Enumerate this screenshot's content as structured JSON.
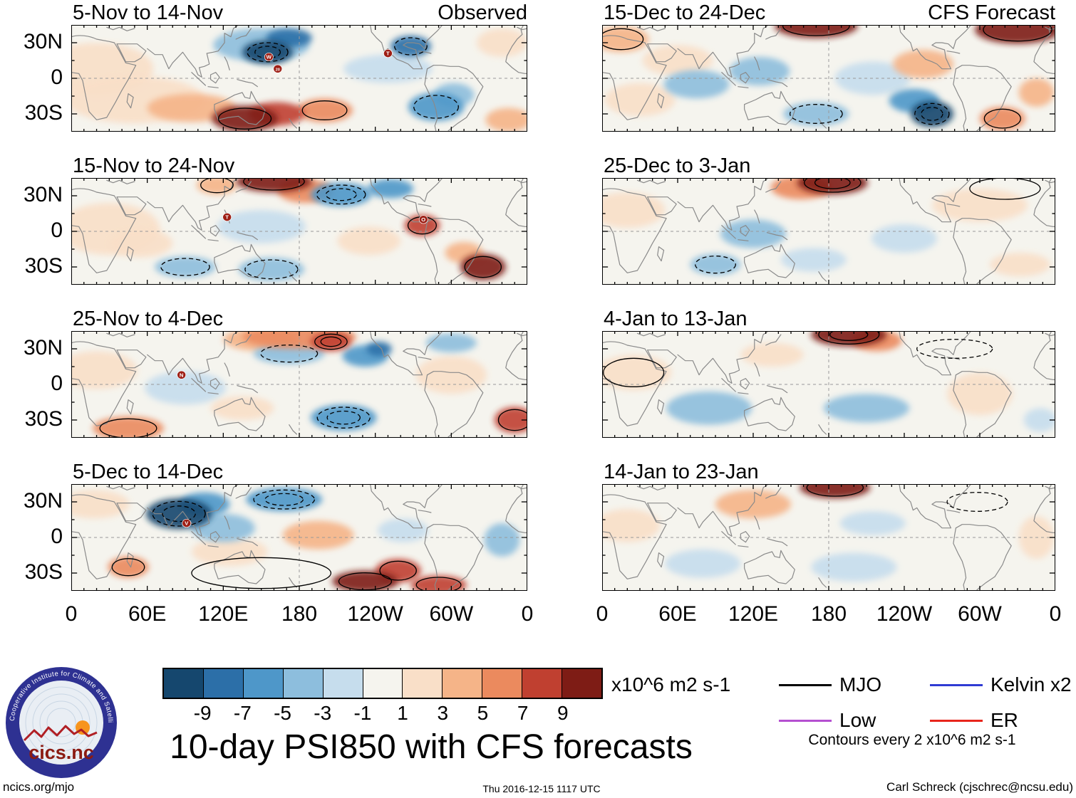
{
  "chart_data": {
    "type": "heatmap",
    "title": "10-day PSI850 with CFS forecasts",
    "units": "x10^6 m2 s-1",
    "contour_note": "Contours every 2 x10^6 m2 s-1",
    "lon_range": [
      0,
      360
    ],
    "lat_range": [
      -45,
      45
    ],
    "grid": {
      "equator_dashed": true,
      "dateline_dashed": true
    },
    "axes": {
      "x_ticks": [
        {
          "lon": 0,
          "label": "0"
        },
        {
          "lon": 60,
          "label": "60E"
        },
        {
          "lon": 120,
          "label": "120E"
        },
        {
          "lon": 180,
          "label": "180"
        },
        {
          "lon": 240,
          "label": "120W"
        },
        {
          "lon": 300,
          "label": "60W"
        },
        {
          "lon": 360,
          "label": "0"
        }
      ],
      "y_ticks": [
        {
          "lat": 30,
          "label": "30N"
        },
        {
          "lat": 0,
          "label": "0"
        },
        {
          "lat": -30,
          "label": "30S"
        }
      ]
    },
    "colorbar": {
      "tick_labels": [
        "-9",
        "-7",
        "-5",
        "-3",
        "-1",
        "1",
        "3",
        "5",
        "7",
        "9"
      ],
      "colors": [
        "#15476e",
        "#2c6fa8",
        "#4e97c9",
        "#8dbedd",
        "#c6dded",
        "#f5f4ee",
        "#f9dfc8",
        "#f5b488",
        "#eb8a5e",
        "#c04030",
        "#7e1c15"
      ]
    },
    "legend": [
      {
        "label": "MJO",
        "color": "#000000"
      },
      {
        "label": "Low",
        "color": "#b44fd0"
      },
      {
        "label": "Kelvin x2",
        "color": "#2f3bd3"
      },
      {
        "label": "ER",
        "color": "#e8251c"
      }
    ],
    "blob_format": "lon,lat,rx_deg,ry_deg,anomaly_level(-5..5),contour_rings(neg=dashed)",
    "panels": [
      {
        "row": 0,
        "col": 0,
        "title": "5-Nov to 14-Nov",
        "corner_label": "Observed",
        "blobs": [
          [
            20,
            8,
            45,
            22,
            1,
            0
          ],
          [
            50,
            -18,
            55,
            20,
            1,
            0
          ],
          [
            95,
            -25,
            35,
            12,
            2,
            0
          ],
          [
            150,
            28,
            38,
            14,
            -2,
            0
          ],
          [
            155,
            22,
            20,
            10,
            -5,
            -2
          ],
          [
            172,
            34,
            18,
            8,
            -4,
            0
          ],
          [
            137,
            -34,
            26,
            11,
            5,
            1
          ],
          [
            162,
            -30,
            22,
            10,
            4,
            0
          ],
          [
            200,
            -27,
            22,
            10,
            3,
            1
          ],
          [
            250,
            8,
            35,
            12,
            -1,
            0
          ],
          [
            268,
            27,
            16,
            9,
            -4,
            -1
          ],
          [
            288,
            -24,
            22,
            12,
            -3,
            -1
          ],
          [
            302,
            -14,
            16,
            10,
            -2,
            0
          ],
          [
            340,
            30,
            20,
            12,
            1,
            0
          ],
          [
            345,
            -35,
            18,
            10,
            2,
            0
          ]
        ],
        "storms": [
          [
            156,
            18,
            "W"
          ],
          [
            163,
            8,
            "20"
          ],
          [
            250,
            21,
            "T"
          ]
        ]
      },
      {
        "row": 1,
        "col": 0,
        "title": "15-Nov to 24-Nov",
        "blobs": [
          [
            30,
            2,
            40,
            22,
            1,
            0
          ],
          [
            55,
            -10,
            25,
            12,
            1,
            0
          ],
          [
            115,
            39,
            16,
            8,
            2,
            1
          ],
          [
            160,
            42,
            30,
            9,
            5,
            1
          ],
          [
            185,
            34,
            22,
            10,
            3,
            0
          ],
          [
            213,
            31,
            24,
            10,
            -3,
            -2
          ],
          [
            252,
            36,
            18,
            8,
            -3,
            0
          ],
          [
            150,
            4,
            35,
            14,
            -1,
            0
          ],
          [
            90,
            -30,
            24,
            9,
            -2,
            -1
          ],
          [
            158,
            -32,
            26,
            10,
            -2,
            -1
          ],
          [
            277,
            5,
            14,
            9,
            4,
            1
          ],
          [
            325,
            -30,
            18,
            11,
            5,
            1
          ],
          [
            310,
            -18,
            15,
            9,
            2,
            0
          ],
          [
            235,
            -8,
            25,
            12,
            1,
            0
          ]
        ],
        "storms": [
          [
            123,
            12,
            "T"
          ],
          [
            278,
            10,
            "O"
          ]
        ]
      },
      {
        "row": 2,
        "col": 0,
        "title": "25-Nov to 4-Dec",
        "blobs": [
          [
            20,
            12,
            32,
            16,
            1,
            0
          ],
          [
            90,
            -3,
            32,
            14,
            -1,
            0
          ],
          [
            135,
            -20,
            25,
            10,
            1,
            0
          ],
          [
            150,
            38,
            30,
            10,
            2,
            0
          ],
          [
            180,
            40,
            45,
            10,
            3,
            0
          ],
          [
            205,
            36,
            16,
            8,
            4,
            2
          ],
          [
            172,
            26,
            28,
            9,
            -2,
            -1
          ],
          [
            232,
            24,
            18,
            9,
            -3,
            0
          ],
          [
            243,
            30,
            10,
            6,
            -4,
            0
          ],
          [
            215,
            -28,
            26,
            11,
            -3,
            -2
          ],
          [
            45,
            -37,
            28,
            10,
            3,
            1
          ],
          [
            350,
            -30,
            16,
            11,
            4,
            1
          ],
          [
            300,
            8,
            28,
            16,
            1,
            0
          ],
          [
            300,
            35,
            20,
            8,
            -2,
            0
          ]
        ],
        "storms": [
          [
            87,
            8,
            "N"
          ]
        ]
      },
      {
        "row": 3,
        "col": 0,
        "title": "5-Dec to 14-Dec",
        "blobs": [
          [
            18,
            28,
            28,
            12,
            1,
            0
          ],
          [
            85,
            20,
            26,
            13,
            -5,
            -2
          ],
          [
            105,
            28,
            20,
            10,
            -3,
            0
          ],
          [
            120,
            8,
            25,
            12,
            -2,
            0
          ],
          [
            168,
            32,
            30,
            10,
            -3,
            -2
          ],
          [
            45,
            -25,
            16,
            9,
            3,
            1
          ],
          [
            125,
            -12,
            30,
            12,
            1,
            0
          ],
          [
            195,
            2,
            28,
            12,
            2,
            0
          ],
          [
            232,
            -37,
            26,
            9,
            5,
            1
          ],
          [
            258,
            -28,
            18,
            10,
            4,
            1
          ],
          [
            290,
            -40,
            22,
            8,
            4,
            1
          ],
          [
            262,
            6,
            20,
            10,
            -1,
            0
          ],
          [
            340,
            -2,
            14,
            14,
            -2,
            0
          ],
          [
            150,
            -30,
            55,
            13,
            0,
            1
          ]
        ],
        "storms": [
          [
            91,
            12,
            "V"
          ]
        ]
      },
      {
        "row": 0,
        "col": 1,
        "title": "15-Dec to 24-Dec",
        "corner_label": "CFS Forecast",
        "blobs": [
          [
            15,
            33,
            22,
            11,
            2,
            1
          ],
          [
            60,
            15,
            28,
            13,
            1,
            0
          ],
          [
            30,
            -18,
            28,
            14,
            1,
            0
          ],
          [
            170,
            44,
            33,
            10,
            5,
            1
          ],
          [
            330,
            41,
            34,
            12,
            5,
            1
          ],
          [
            75,
            -5,
            26,
            12,
            -2,
            0
          ],
          [
            125,
            6,
            24,
            12,
            -2,
            0
          ],
          [
            170,
            -30,
            26,
            10,
            -2,
            -1
          ],
          [
            262,
            -30,
            17,
            11,
            -5,
            -2
          ],
          [
            248,
            -19,
            20,
            10,
            -3,
            0
          ],
          [
            255,
            12,
            24,
            12,
            2,
            0
          ],
          [
            318,
            -34,
            18,
            10,
            3,
            1
          ],
          [
            345,
            -12,
            14,
            12,
            2,
            0
          ],
          [
            215,
            0,
            30,
            14,
            -1,
            0
          ]
        ],
        "storms": []
      },
      {
        "row": 1,
        "col": 1,
        "title": "25-Dec to 3-Jan",
        "blobs": [
          [
            183,
            41,
            28,
            10,
            5,
            2
          ],
          [
            158,
            37,
            24,
            10,
            3,
            0
          ],
          [
            20,
            18,
            30,
            15,
            1,
            0
          ],
          [
            120,
            -2,
            26,
            12,
            -2,
            0
          ],
          [
            90,
            -28,
            20,
            9,
            -2,
            -1
          ],
          [
            168,
            -24,
            26,
            10,
            -1,
            0
          ],
          [
            300,
            22,
            38,
            14,
            1,
            0
          ],
          [
            320,
            36,
            28,
            9,
            0,
            1
          ],
          [
            332,
            -28,
            24,
            10,
            1,
            0
          ],
          [
            240,
            -6,
            26,
            12,
            -1,
            0
          ]
        ],
        "storms": []
      },
      {
        "row": 2,
        "col": 1,
        "title": "4-Jan to 13-Jan",
        "blobs": [
          [
            196,
            42,
            30,
            10,
            5,
            2
          ],
          [
            218,
            37,
            20,
            9,
            3,
            0
          ],
          [
            280,
            30,
            30,
            8,
            0,
            -1
          ],
          [
            25,
            10,
            30,
            15,
            1,
            1
          ],
          [
            85,
            -20,
            34,
            14,
            -2,
            0
          ],
          [
            210,
            -20,
            34,
            12,
            -2,
            0
          ],
          [
            300,
            -8,
            26,
            18,
            1,
            0
          ],
          [
            348,
            -30,
            13,
            10,
            -1,
            0
          ],
          [
            135,
            25,
            25,
            10,
            1,
            0
          ]
        ],
        "storms": []
      },
      {
        "row": 3,
        "col": 1,
        "title": "14-Jan to 23-Jan",
        "blobs": [
          [
            185,
            42,
            28,
            9,
            5,
            1
          ],
          [
            120,
            28,
            30,
            12,
            2,
            0
          ],
          [
            20,
            10,
            26,
            14,
            1,
            0
          ],
          [
            80,
            -22,
            30,
            12,
            -1,
            0
          ],
          [
            200,
            -25,
            34,
            12,
            -1,
            0
          ],
          [
            345,
            0,
            14,
            18,
            1,
            0
          ],
          [
            215,
            12,
            26,
            10,
            -1,
            0
          ],
          [
            298,
            30,
            24,
            8,
            0,
            -1
          ]
        ],
        "storms": []
      }
    ]
  },
  "branding": {
    "logo_text": "cics.nc",
    "logo_ring_text": "Cooperative Institute for Climate and Satellites"
  },
  "footer": {
    "left": "ncics.org/mjo",
    "center": "Thu 2016-12-15 1117 UTC",
    "right": "Carl Schreck (cjschrec@ncsu.edu)"
  }
}
